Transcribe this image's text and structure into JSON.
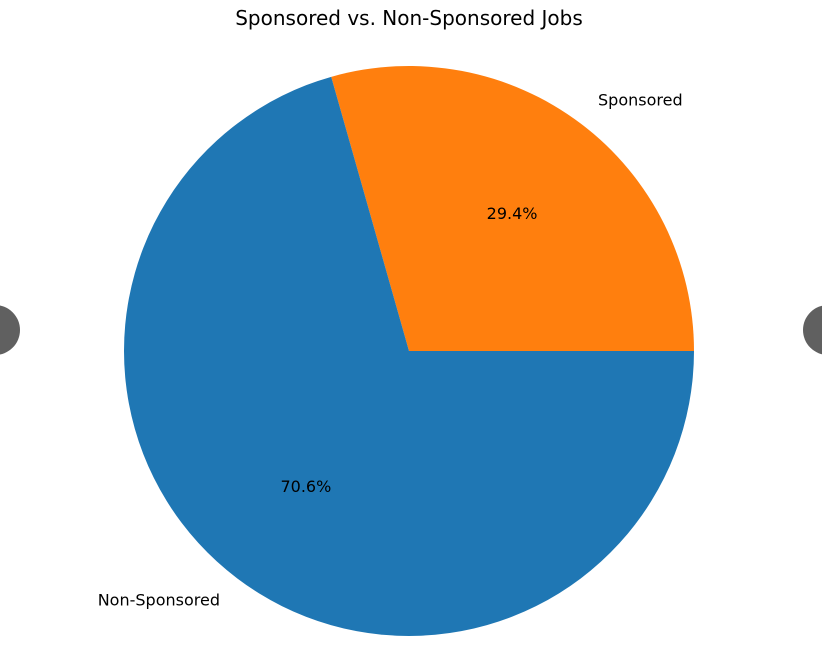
{
  "chart_data": {
    "type": "pie",
    "title": "Sponsored vs. Non-Sponsored Jobs",
    "slices": [
      {
        "label": "Sponsored",
        "value": 29.4,
        "pct_label": "29.4%",
        "color": "#ff7f0e"
      },
      {
        "label": "Non-Sponsored",
        "value": 70.6,
        "pct_label": "70.6%",
        "color": "#1f77b4"
      }
    ]
  },
  "carousel": {
    "prev_icon": "chevron-left-icon",
    "next_icon": "chevron-right-icon"
  }
}
